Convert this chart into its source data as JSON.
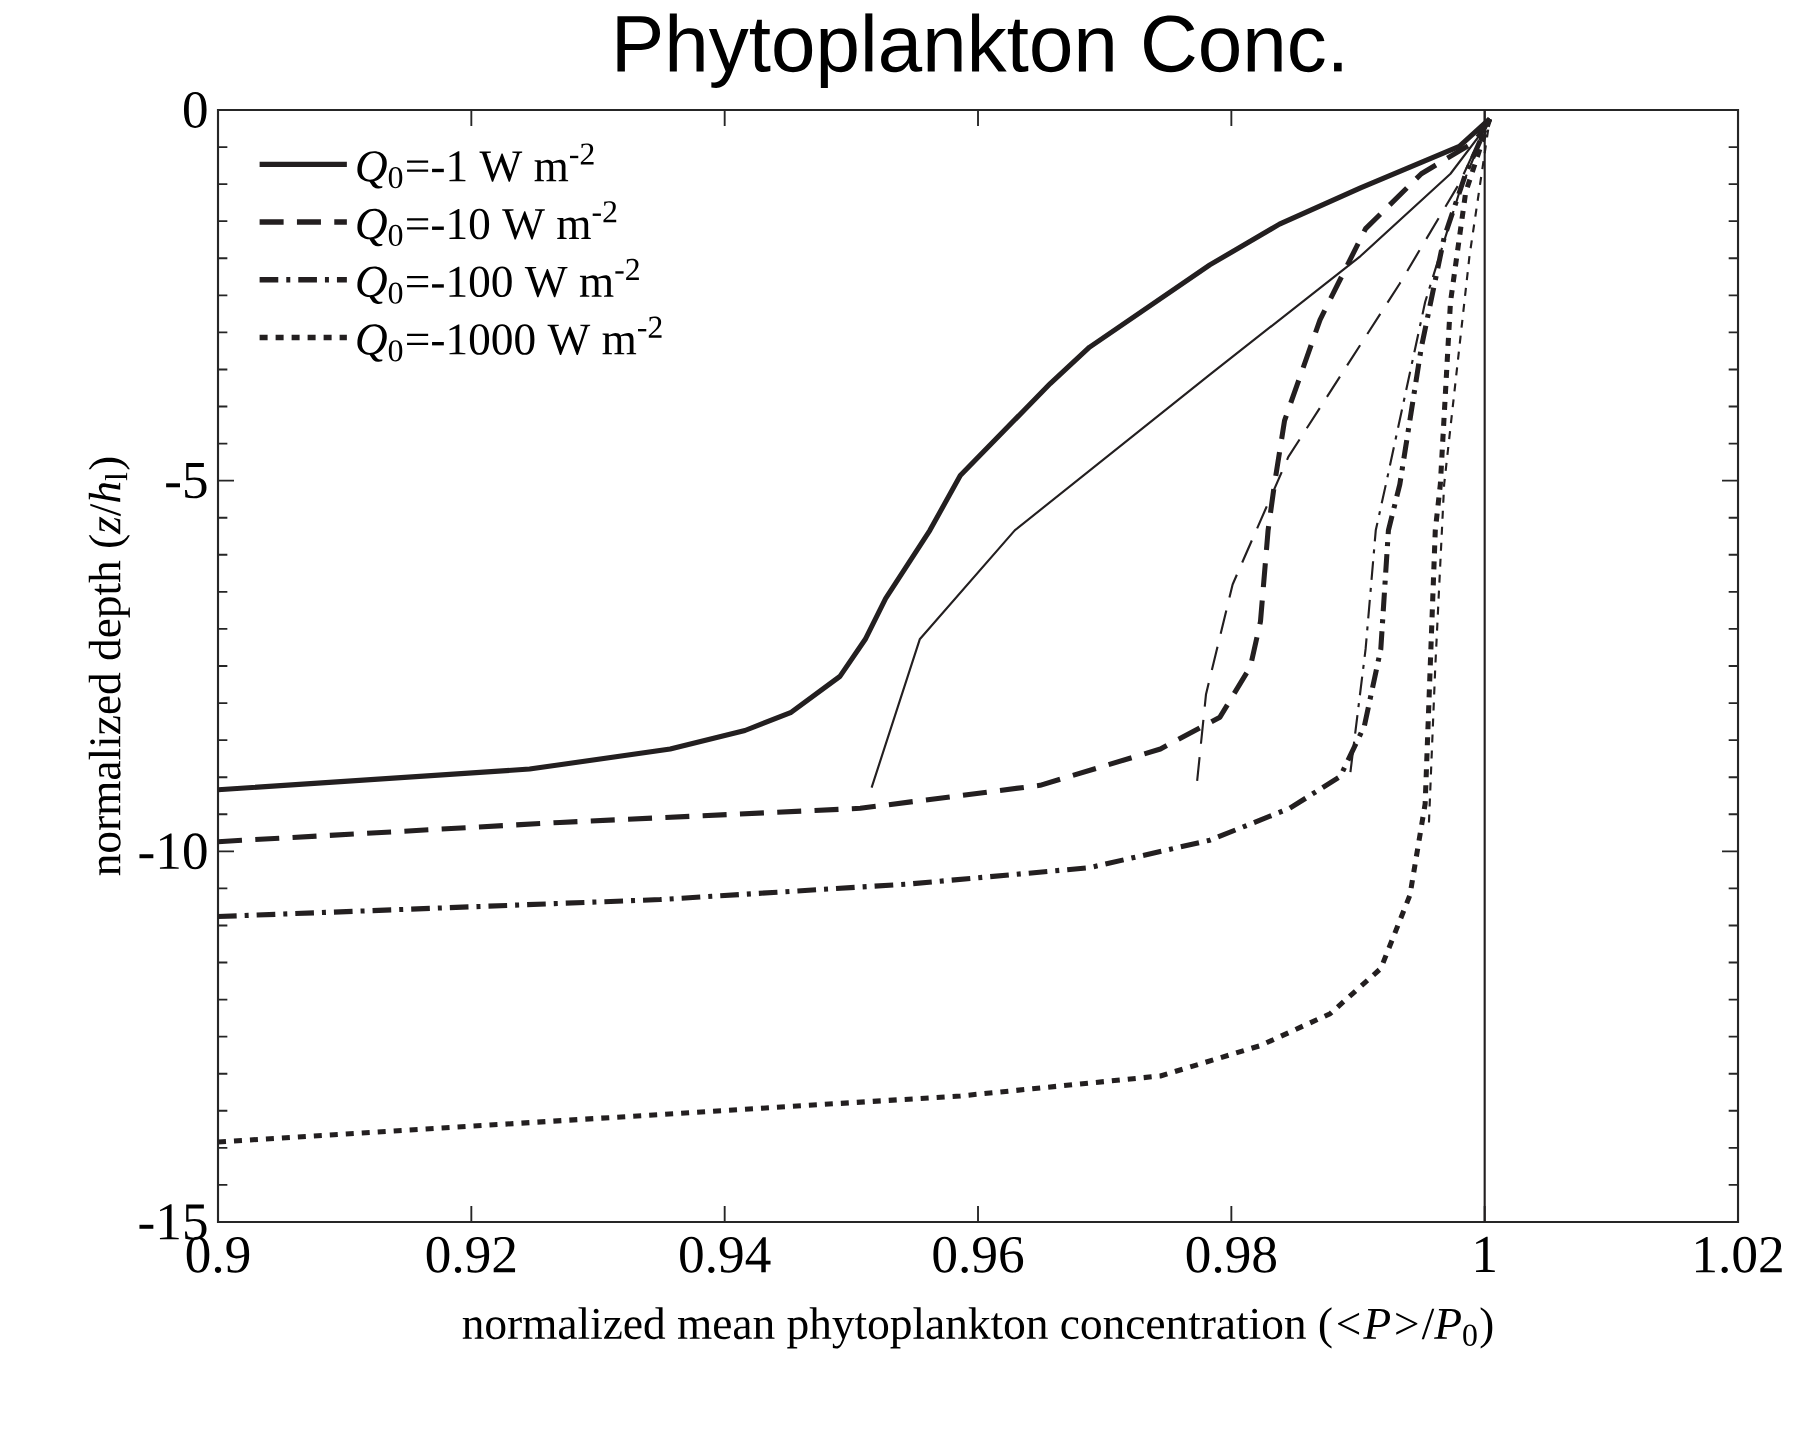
{
  "chart_data": {
    "type": "line",
    "title": "Phytoplankton Conc.",
    "xlabel": "normalized mean phytoplankton concentration (*<P>*/*P*$_{0}$)",
    "ylabel": "normalized depth (*z*/*h*$_{l}$)",
    "xlim": [
      0.9,
      1.02
    ],
    "ylim": [
      -15,
      0
    ],
    "xticks": [
      0.9,
      0.92,
      0.94,
      0.96,
      0.98,
      1,
      1.02
    ],
    "yticks": [
      -15,
      -10,
      -5,
      0
    ],
    "legend": "top left",
    "series": [
      {
        "name": "*Q*$_{0}$=-1 W m$^{-2}$",
        "color": "#231f20",
        "line_style": "solid",
        "x": [
          0.9,
          0.9246,
          0.9357,
          0.9416,
          0.9452,
          0.9491,
          0.9511,
          0.9527,
          0.9562,
          0.9586,
          0.9657,
          0.9688,
          0.9783,
          0.9838,
          0.9902,
          0.998,
          1.0,
          1.0004
        ],
        "values": [
          -9.17,
          -8.89,
          -8.62,
          -8.37,
          -8.13,
          -7.64,
          -7.14,
          -6.59,
          -5.67,
          -4.93,
          -3.69,
          -3.2,
          -2.09,
          -1.54,
          -1.05,
          -0.49,
          -0.18,
          -0.12
        ]
      },
      {
        "color": "#231f20",
        "line_style": "solid",
        "x": [
          0.9516,
          0.9554,
          0.9629,
          0.9783,
          0.9902,
          0.9973,
          1.0,
          1.0004
        ],
        "values": [
          -9.14,
          -7.14,
          -5.67,
          -3.57,
          -1.97,
          -0.86,
          -0.25,
          -0.12
        ]
      },
      {
        "name": "*Q*$_{0}$=-10 W m$^{-2}$",
        "color": "#231f20",
        "line_style": "dashed",
        "x": [
          0.9,
          0.927,
          0.9507,
          0.9649,
          0.9744,
          0.9791,
          0.9815,
          0.9823,
          0.9829,
          0.9834,
          0.9842,
          0.987,
          0.9906,
          0.995,
          0.9992,
          1.0004
        ],
        "values": [
          -9.87,
          -9.61,
          -9.42,
          -9.11,
          -8.62,
          -8.19,
          -7.51,
          -6.9,
          -5.67,
          -5.05,
          -4.19,
          -2.83,
          -1.6,
          -0.86,
          -0.43,
          -0.12
        ]
      },
      {
        "color": "#231f20",
        "line_style": "dashed",
        "x": [
          0.9773,
          0.978,
          0.9801,
          0.9845,
          0.9933,
          0.998,
          1.0,
          1.0004
        ],
        "values": [
          -9.05,
          -7.88,
          -6.4,
          -4.68,
          -2.34,
          -0.99,
          -0.25,
          -0.12
        ]
      },
      {
        "name": "*Q*$_{0}$=-100 W m$^{-2}$",
        "color": "#231f20",
        "line_style": "dashdot",
        "x": [
          0.9,
          0.9349,
          0.9546,
          0.9688,
          0.9783,
          0.9846,
          0.9886,
          0.9905,
          0.9918,
          0.9924,
          0.9933,
          0.995,
          0.9968,
          0.9985,
          1.0004
        ],
        "values": [
          -10.88,
          -10.65,
          -10.44,
          -10.22,
          -9.85,
          -9.42,
          -8.99,
          -8.31,
          -7.27,
          -5.67,
          -5.05,
          -3.2,
          -1.72,
          -0.86,
          -0.12
        ]
      },
      {
        "color": "#231f20",
        "line_style": "dashdot",
        "x": [
          0.9894,
          0.9906,
          0.9914,
          0.9922,
          0.9953,
          0.998,
          1.0004
        ],
        "values": [
          -8.93,
          -7.27,
          -5.67,
          -5.05,
          -2.59,
          -1.11,
          -0.12
        ]
      },
      {
        "name": "*Q*$_{0}$=-1000 W m$^{-2}$",
        "color": "#231f20",
        "line_style": "dotted",
        "x": [
          0.9,
          0.9349,
          0.9586,
          0.9744,
          0.9823,
          0.9878,
          0.9918,
          0.9941,
          0.9953,
          0.9957,
          0.9961,
          0.9965,
          0.9973,
          0.9985,
          1.0004
        ],
        "values": [
          -13.92,
          -13.55,
          -13.3,
          -13.03,
          -12.62,
          -12.19,
          -11.58,
          -10.59,
          -9.36,
          -7.51,
          -5.67,
          -5.05,
          -2.59,
          -1.11,
          -0.12
        ]
      },
      {
        "color": "#231f20",
        "line_style": "dotted",
        "x": [
          0.9956,
          0.9961,
          0.9968,
          0.9988,
          1.0004
        ],
        "values": [
          -9.61,
          -7.51,
          -5.05,
          -1.97,
          -0.12
        ]
      }
    ],
    "ref_lines": [
      {
        "axis": "x",
        "value": 1,
        "color": "#231f20",
        "line_style": "solid"
      }
    ]
  }
}
